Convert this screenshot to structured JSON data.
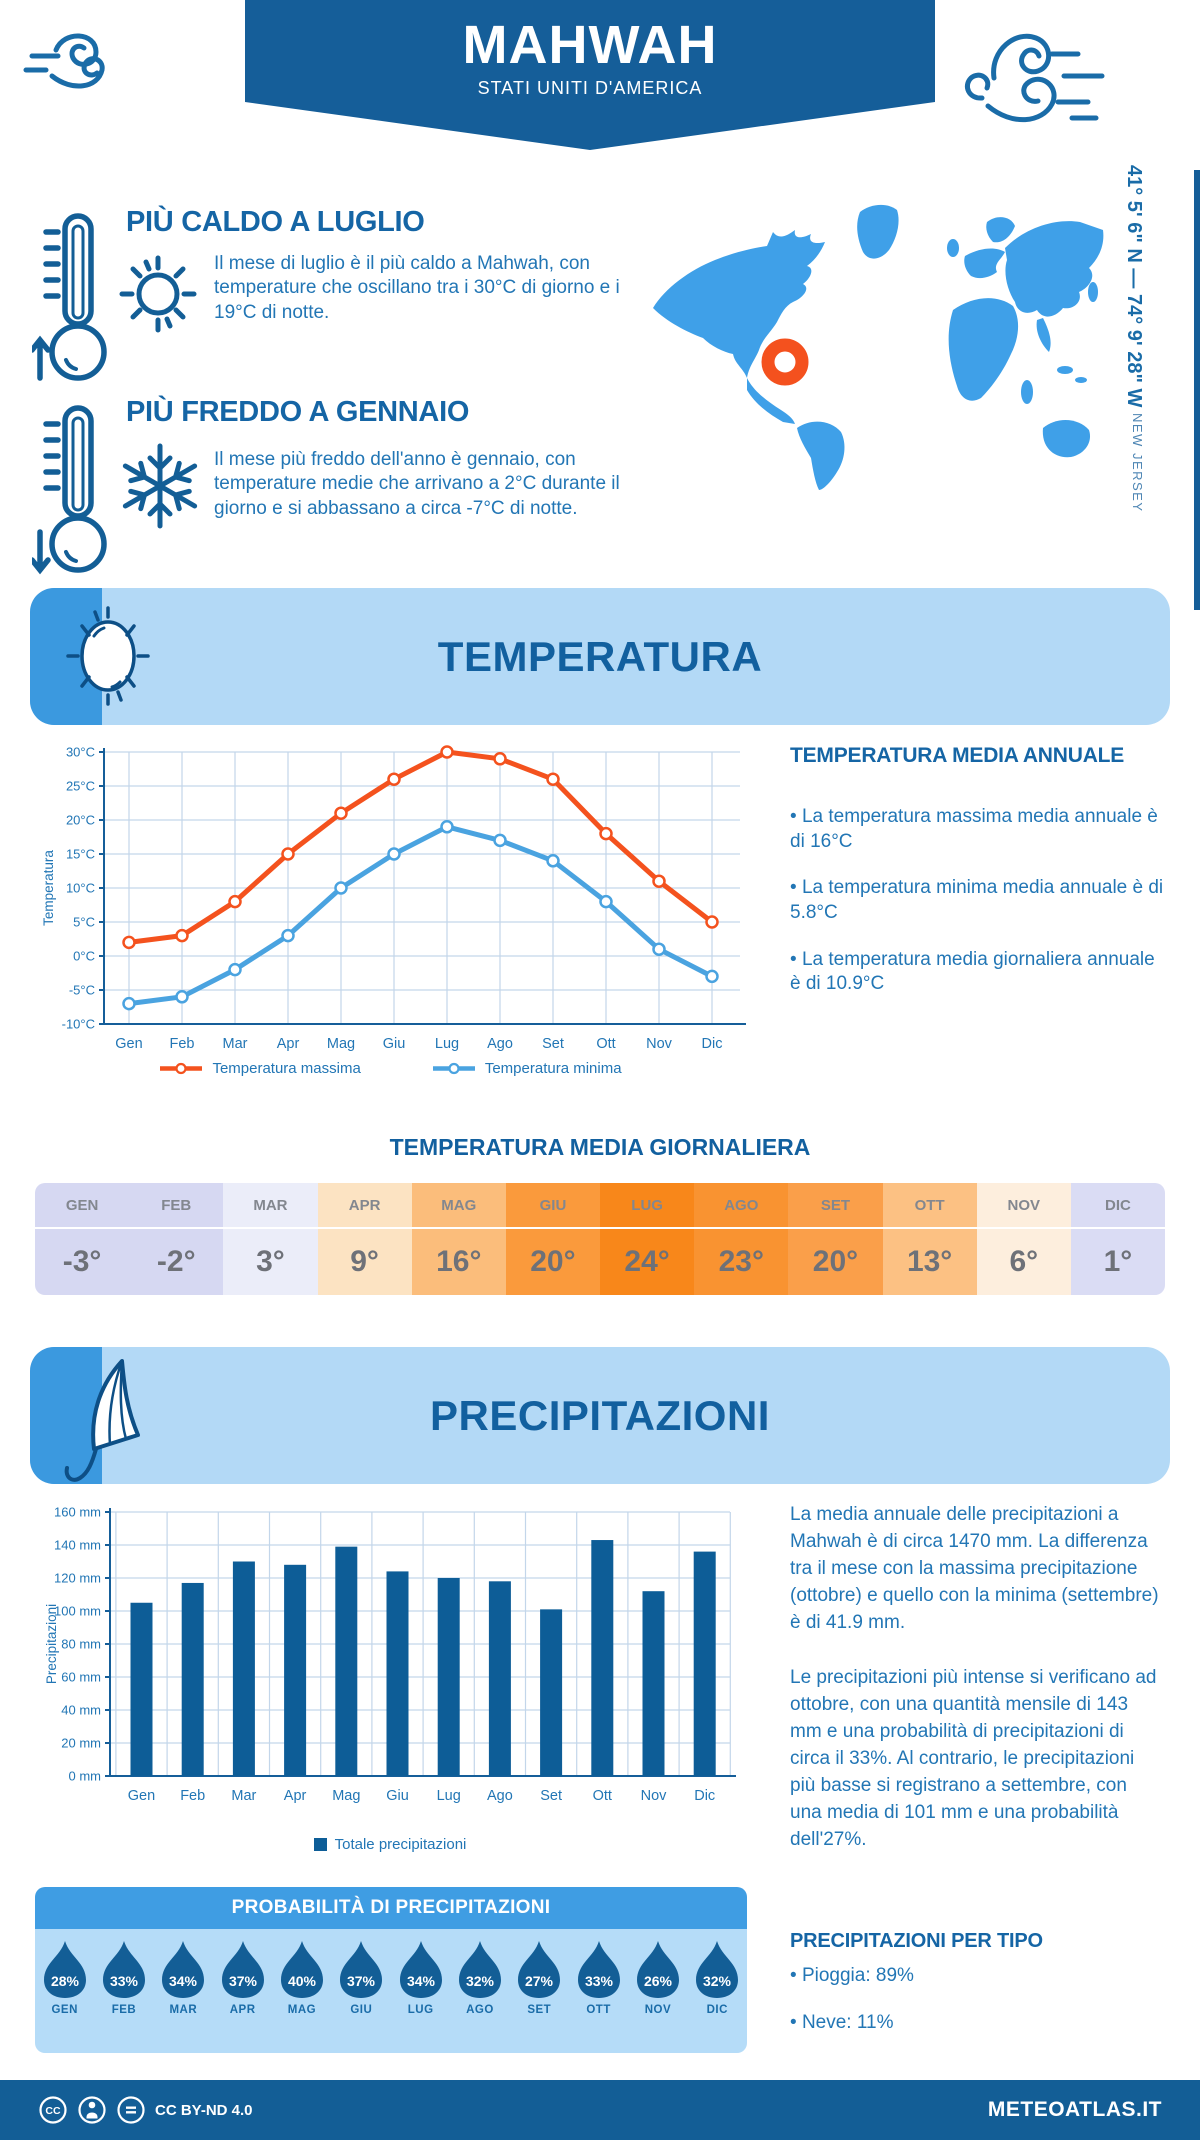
{
  "header": {
    "title": "MAHWAH",
    "subtitle": "STATI UNITI D'AMERICA",
    "coordinates": "41° 5' 6\" N — 74° 9' 28\" W",
    "region": "NEW JERSEY"
  },
  "highlights": {
    "hot": {
      "title": "PIÙ CALDO A LUGLIO",
      "text": "Il mese di luglio è il più caldo a Mahwah, con temperature che oscillano tra i 30°C di giorno e i 19°C di notte."
    },
    "cold": {
      "title": "PIÙ FREDDO A GENNAIO",
      "text": "Il mese più freddo dell'anno è gennaio, con temperature medie che arrivano a 2°C durante il giorno e si abbassano a circa -7°C di notte."
    }
  },
  "temperature": {
    "band_title": "TEMPERATURA",
    "legend": [
      {
        "label": "Temperatura massima",
        "color": "#f4521e"
      },
      {
        "label": "Temperatura minima",
        "color": "#4aa3e0"
      }
    ],
    "annual": {
      "title": "TEMPERATURA MEDIA ANNUALE",
      "bullets": [
        "La temperatura massima media annuale è di 16°C",
        "La temperatura minima media annuale è di 5.8°C",
        "La temperatura media giornaliera annuale è di 10.9°C"
      ]
    },
    "daily": {
      "title": "TEMPERATURA MEDIA GIORNALIERA",
      "months": [
        "GEN",
        "FEB",
        "MAR",
        "APR",
        "MAG",
        "GIU",
        "LUG",
        "AGO",
        "SET",
        "OTT",
        "NOV",
        "DIC"
      ],
      "values": [
        "-3°",
        "-2°",
        "3°",
        "9°",
        "16°",
        "20°",
        "24°",
        "23°",
        "20°",
        "13°",
        "6°",
        "1°"
      ],
      "cell_colors": [
        "#d6d8f2",
        "#d6d8f2",
        "#ebedf9",
        "#fce3c2",
        "#fbbd7b",
        "#fa9a3c",
        "#f8871a",
        "#f99331",
        "#fa9f4a",
        "#fcc183",
        "#fdeedd",
        "#dadcf4"
      ]
    }
  },
  "precipitation": {
    "band_title": "PRECIPITAZIONI",
    "legend": "Totale precipitazioni",
    "paragraphs": [
      "La media annuale delle precipitazioni a Mahwah è di circa 1470 mm. La differenza tra il mese con la massima precipitazione (ottobre) e quello con la minima (settembre) è di 41.9 mm.",
      "Le precipitazioni più intense si verificano ad ottobre, con una quantità mensile di 143 mm e una probabilità di precipitazioni di circa il 33%. Al contrario, le precipitazioni più basse si registrano a settembre, con una media di 101 mm e una probabilità dell'27%."
    ],
    "probability": {
      "title": "PROBABILITÀ DI PRECIPITAZIONI",
      "months": [
        "GEN",
        "FEB",
        "MAR",
        "APR",
        "MAG",
        "GIU",
        "LUG",
        "AGO",
        "SET",
        "OTT",
        "NOV",
        "DIC"
      ],
      "values": [
        "28%",
        "33%",
        "34%",
        "37%",
        "40%",
        "37%",
        "34%",
        "32%",
        "27%",
        "33%",
        "26%",
        "32%"
      ]
    },
    "types": {
      "title": "PRECIPITAZIONI PER TIPO",
      "bullets": [
        "Pioggia: 89%",
        "Neve: 11%"
      ]
    }
  },
  "footer": {
    "license": "CC BY-ND 4.0",
    "site": "METEOATLAS.IT"
  },
  "chart_data": [
    {
      "type": "line",
      "title": "Temperatura",
      "categories": [
        "Gen",
        "Feb",
        "Mar",
        "Apr",
        "Mag",
        "Giu",
        "Lug",
        "Ago",
        "Set",
        "Ott",
        "Nov",
        "Dic"
      ],
      "series": [
        {
          "name": "Temperatura massima",
          "color": "#f4521e",
          "values": [
            2,
            3,
            8,
            15,
            21,
            26,
            30,
            29,
            26,
            18,
            11,
            5
          ]
        },
        {
          "name": "Temperatura minima",
          "color": "#4aa3e0",
          "values": [
            -7,
            -6,
            -2,
            3,
            10,
            15,
            19,
            17,
            14,
            8,
            1,
            -3
          ]
        }
      ],
      "xlabel": "",
      "ylabel": "Temperatura",
      "ylim": [
        -10,
        30
      ],
      "ytick_step": 5,
      "ytick_suffix": "°C",
      "grid": true,
      "legend_position": "bottom"
    },
    {
      "type": "bar",
      "title": "Precipitazioni",
      "categories": [
        "Gen",
        "Feb",
        "Mar",
        "Apr",
        "Mag",
        "Giu",
        "Lug",
        "Ago",
        "Set",
        "Ott",
        "Nov",
        "Dic"
      ],
      "values": [
        105,
        117,
        130,
        128,
        139,
        124,
        120,
        118,
        101,
        143,
        112,
        136
      ],
      "xlabel": "",
      "ylabel": "Precipitazioni",
      "ylim": [
        0,
        160
      ],
      "ytick_step": 20,
      "ytick_suffix": " mm",
      "bar_color": "#0d5d97",
      "grid": true,
      "legend": "Totale precipitazioni"
    }
  ]
}
